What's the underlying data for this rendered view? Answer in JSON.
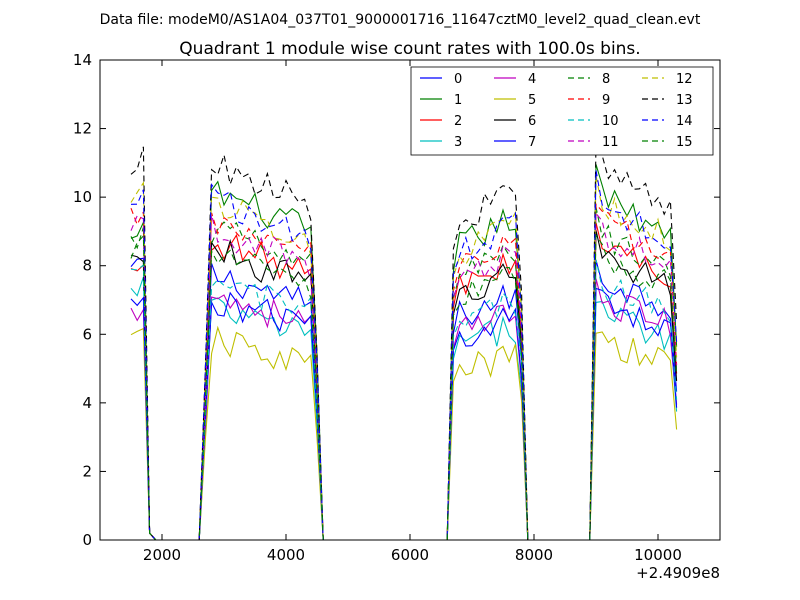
{
  "suptitle": "Data file: modeM0/AS1A04_037T01_9000001716_11647cztM0_level2_quad_clean.evt",
  "chart_data": {
    "type": "line",
    "title": "Quadrant 1 module wise count rates with 100.0s bins.",
    "xlabel": "",
    "ylabel": "",
    "x_offset_label": "+2.4909e8",
    "xlim": [
      1000,
      11000
    ],
    "ylim": [
      0,
      14
    ],
    "xticks": [
      "2000",
      "4000",
      "6000",
      "8000",
      "10000"
    ],
    "yticks": [
      "0",
      "2",
      "4",
      "6",
      "8",
      "10",
      "12",
      "14"
    ],
    "grid": false,
    "legend": "top-right, 4 columns",
    "segments": [
      {
        "x_start": 1500,
        "x_end": 1800,
        "interval": 100
      },
      {
        "x_start": 1800,
        "x_end": 2600,
        "interval": 100,
        "zero": true
      },
      {
        "x_start": 2700,
        "x_end": 4500,
        "interval": 100
      },
      {
        "x_start": 4600,
        "x_end": 6600,
        "interval": 100,
        "zero": true
      },
      {
        "x_start": 6700,
        "x_end": 7800,
        "interval": 100
      },
      {
        "x_start": 7900,
        "x_end": 8900,
        "interval": 100,
        "zero": true
      },
      {
        "x_start": 9000,
        "x_end": 10300,
        "interval": 100
      }
    ],
    "series": [
      {
        "name": "0",
        "color": "#0000ff",
        "dash": "solid",
        "level": 7.6,
        "edge": 7.9
      },
      {
        "name": "1",
        "color": "#008000",
        "dash": "solid",
        "level": 10.0,
        "edge": 8.7
      },
      {
        "name": "2",
        "color": "#ff0000",
        "dash": "solid",
        "level": 8.6,
        "edge": 7.8
      },
      {
        "name": "3",
        "color": "#00bfbf",
        "dash": "solid",
        "level": 6.6,
        "edge": 7.2
      },
      {
        "name": "4",
        "color": "#bf00bf",
        "dash": "solid",
        "level": 7.0,
        "edge": 6.6
      },
      {
        "name": "5",
        "color": "#bfbf00",
        "dash": "solid",
        "level": 5.7,
        "edge": 5.8
      },
      {
        "name": "6",
        "color": "#000000",
        "dash": "solid",
        "level": 8.3,
        "edge": 8.1
      },
      {
        "name": "7",
        "color": "#0000ff",
        "dash": "solid",
        "level": 6.9,
        "edge": 6.8
      },
      {
        "name": "8",
        "color": "#008000",
        "dash": "dashed",
        "level": 8.9,
        "edge": 8.6
      },
      {
        "name": "9",
        "color": "#ff0000",
        "dash": "dashed",
        "level": 9.2,
        "edge": 9.4
      },
      {
        "name": "10",
        "color": "#00bfbf",
        "dash": "dashed",
        "level": 7.4,
        "edge": 7.6
      },
      {
        "name": "11",
        "color": "#bf00bf",
        "dash": "dashed",
        "level": 8.9,
        "edge": 9.3
      },
      {
        "name": "12",
        "color": "#bfbf00",
        "dash": "dashed",
        "level": 9.7,
        "edge": 10.1
      },
      {
        "name": "13",
        "color": "#000000",
        "dash": "dashed",
        "level": 10.8,
        "edge": 10.9
      },
      {
        "name": "14",
        "color": "#0000ff",
        "dash": "dashed",
        "level": 9.8,
        "edge": 10.0
      },
      {
        "name": "15",
        "color": "#008000",
        "dash": "dashed",
        "level": 8.2,
        "edge": 8.4
      }
    ]
  }
}
